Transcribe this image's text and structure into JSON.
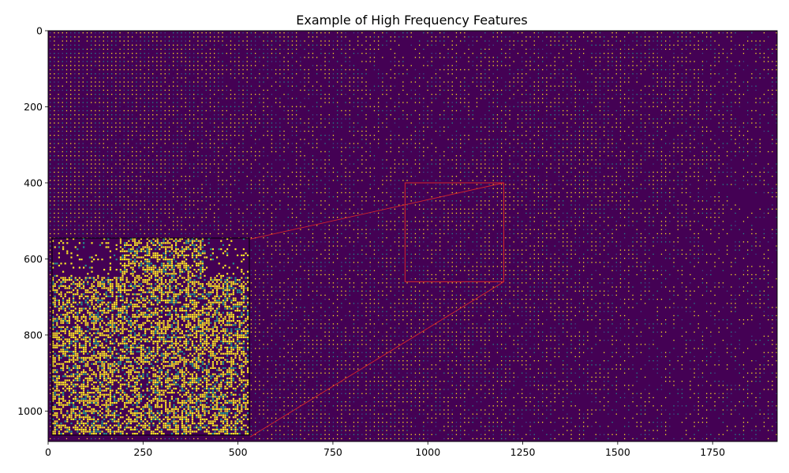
{
  "chart_data": {
    "type": "heatmap",
    "title": "Example of High Frequency Features",
    "xlabel": "",
    "ylabel": "",
    "xlim": [
      0,
      1920
    ],
    "ylim": [
      1080,
      0
    ],
    "x_ticks": [
      0,
      250,
      500,
      750,
      1000,
      1250,
      1500,
      1750
    ],
    "y_ticks": [
      0,
      200,
      400,
      600,
      800,
      1000
    ],
    "x_tick_labels": [
      "0",
      "250",
      "500",
      "750",
      "1000",
      "1250",
      "1500",
      "1750"
    ],
    "y_tick_labels": [
      "0",
      "200",
      "400",
      "600",
      "800",
      "1000"
    ],
    "colormap": "viridis",
    "colors": {
      "background": "#440154",
      "dot_bright": "#fde725",
      "dot_mid": "#21918c",
      "dot_dark": "#3b528b",
      "zoom_box": "#d62728"
    },
    "zoom_region": {
      "x": [
        940,
        1200
      ],
      "y": [
        400,
        660
      ]
    },
    "inset_extent": {
      "x": [
        12,
        532
      ],
      "y": [
        548,
        1068
      ]
    },
    "grid": false,
    "legend": "none"
  }
}
